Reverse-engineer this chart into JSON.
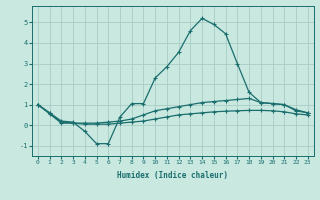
{
  "xlabel": "Humidex (Indice chaleur)",
  "ylabel": "",
  "bg_color": "#c8e8e0",
  "grid_color": "#a8ccc4",
  "line_color": "#1a6e6e",
  "xlim": [
    -0.5,
    23.5
  ],
  "ylim": [
    -1.5,
    5.8
  ],
  "xticks": [
    0,
    1,
    2,
    3,
    4,
    5,
    6,
    7,
    8,
    9,
    10,
    11,
    12,
    13,
    14,
    15,
    16,
    17,
    18,
    19,
    20,
    21,
    22,
    23
  ],
  "yticks": [
    -1,
    0,
    1,
    2,
    3,
    4,
    5
  ],
  "line1_x": [
    0,
    1,
    2,
    3,
    4,
    5,
    6,
    7,
    8,
    9,
    10,
    11,
    12,
    13,
    14,
    15,
    16,
    17,
    18,
    19,
    20,
    21,
    22,
    23
  ],
  "line1_y": [
    1.0,
    0.6,
    0.2,
    0.15,
    -0.3,
    -0.9,
    -0.9,
    0.4,
    1.05,
    1.05,
    2.3,
    2.85,
    3.55,
    4.6,
    5.2,
    4.9,
    4.45,
    3.0,
    1.6,
    1.1,
    1.05,
    1.0,
    0.75,
    0.6
  ],
  "line2_x": [
    0,
    1,
    2,
    3,
    4,
    5,
    6,
    7,
    8,
    9,
    10,
    11,
    12,
    13,
    14,
    15,
    16,
    17,
    18,
    19,
    20,
    21,
    22,
    23
  ],
  "line2_y": [
    1.0,
    0.6,
    0.15,
    0.1,
    0.1,
    0.1,
    0.15,
    0.2,
    0.3,
    0.5,
    0.7,
    0.8,
    0.9,
    1.0,
    1.1,
    1.15,
    1.2,
    1.25,
    1.3,
    1.1,
    1.05,
    1.0,
    0.7,
    0.6
  ],
  "line3_x": [
    0,
    1,
    2,
    3,
    4,
    5,
    6,
    7,
    8,
    9,
    10,
    11,
    12,
    13,
    14,
    15,
    16,
    17,
    18,
    19,
    20,
    21,
    22,
    23
  ],
  "line3_y": [
    1.0,
    0.55,
    0.1,
    0.1,
    0.05,
    0.05,
    0.05,
    0.1,
    0.15,
    0.2,
    0.3,
    0.4,
    0.5,
    0.55,
    0.6,
    0.65,
    0.68,
    0.7,
    0.72,
    0.72,
    0.7,
    0.65,
    0.55,
    0.5
  ],
  "xlabel_fontsize": 5.5,
  "tick_fontsize": 4.5,
  "ytick_fontsize": 5.0
}
